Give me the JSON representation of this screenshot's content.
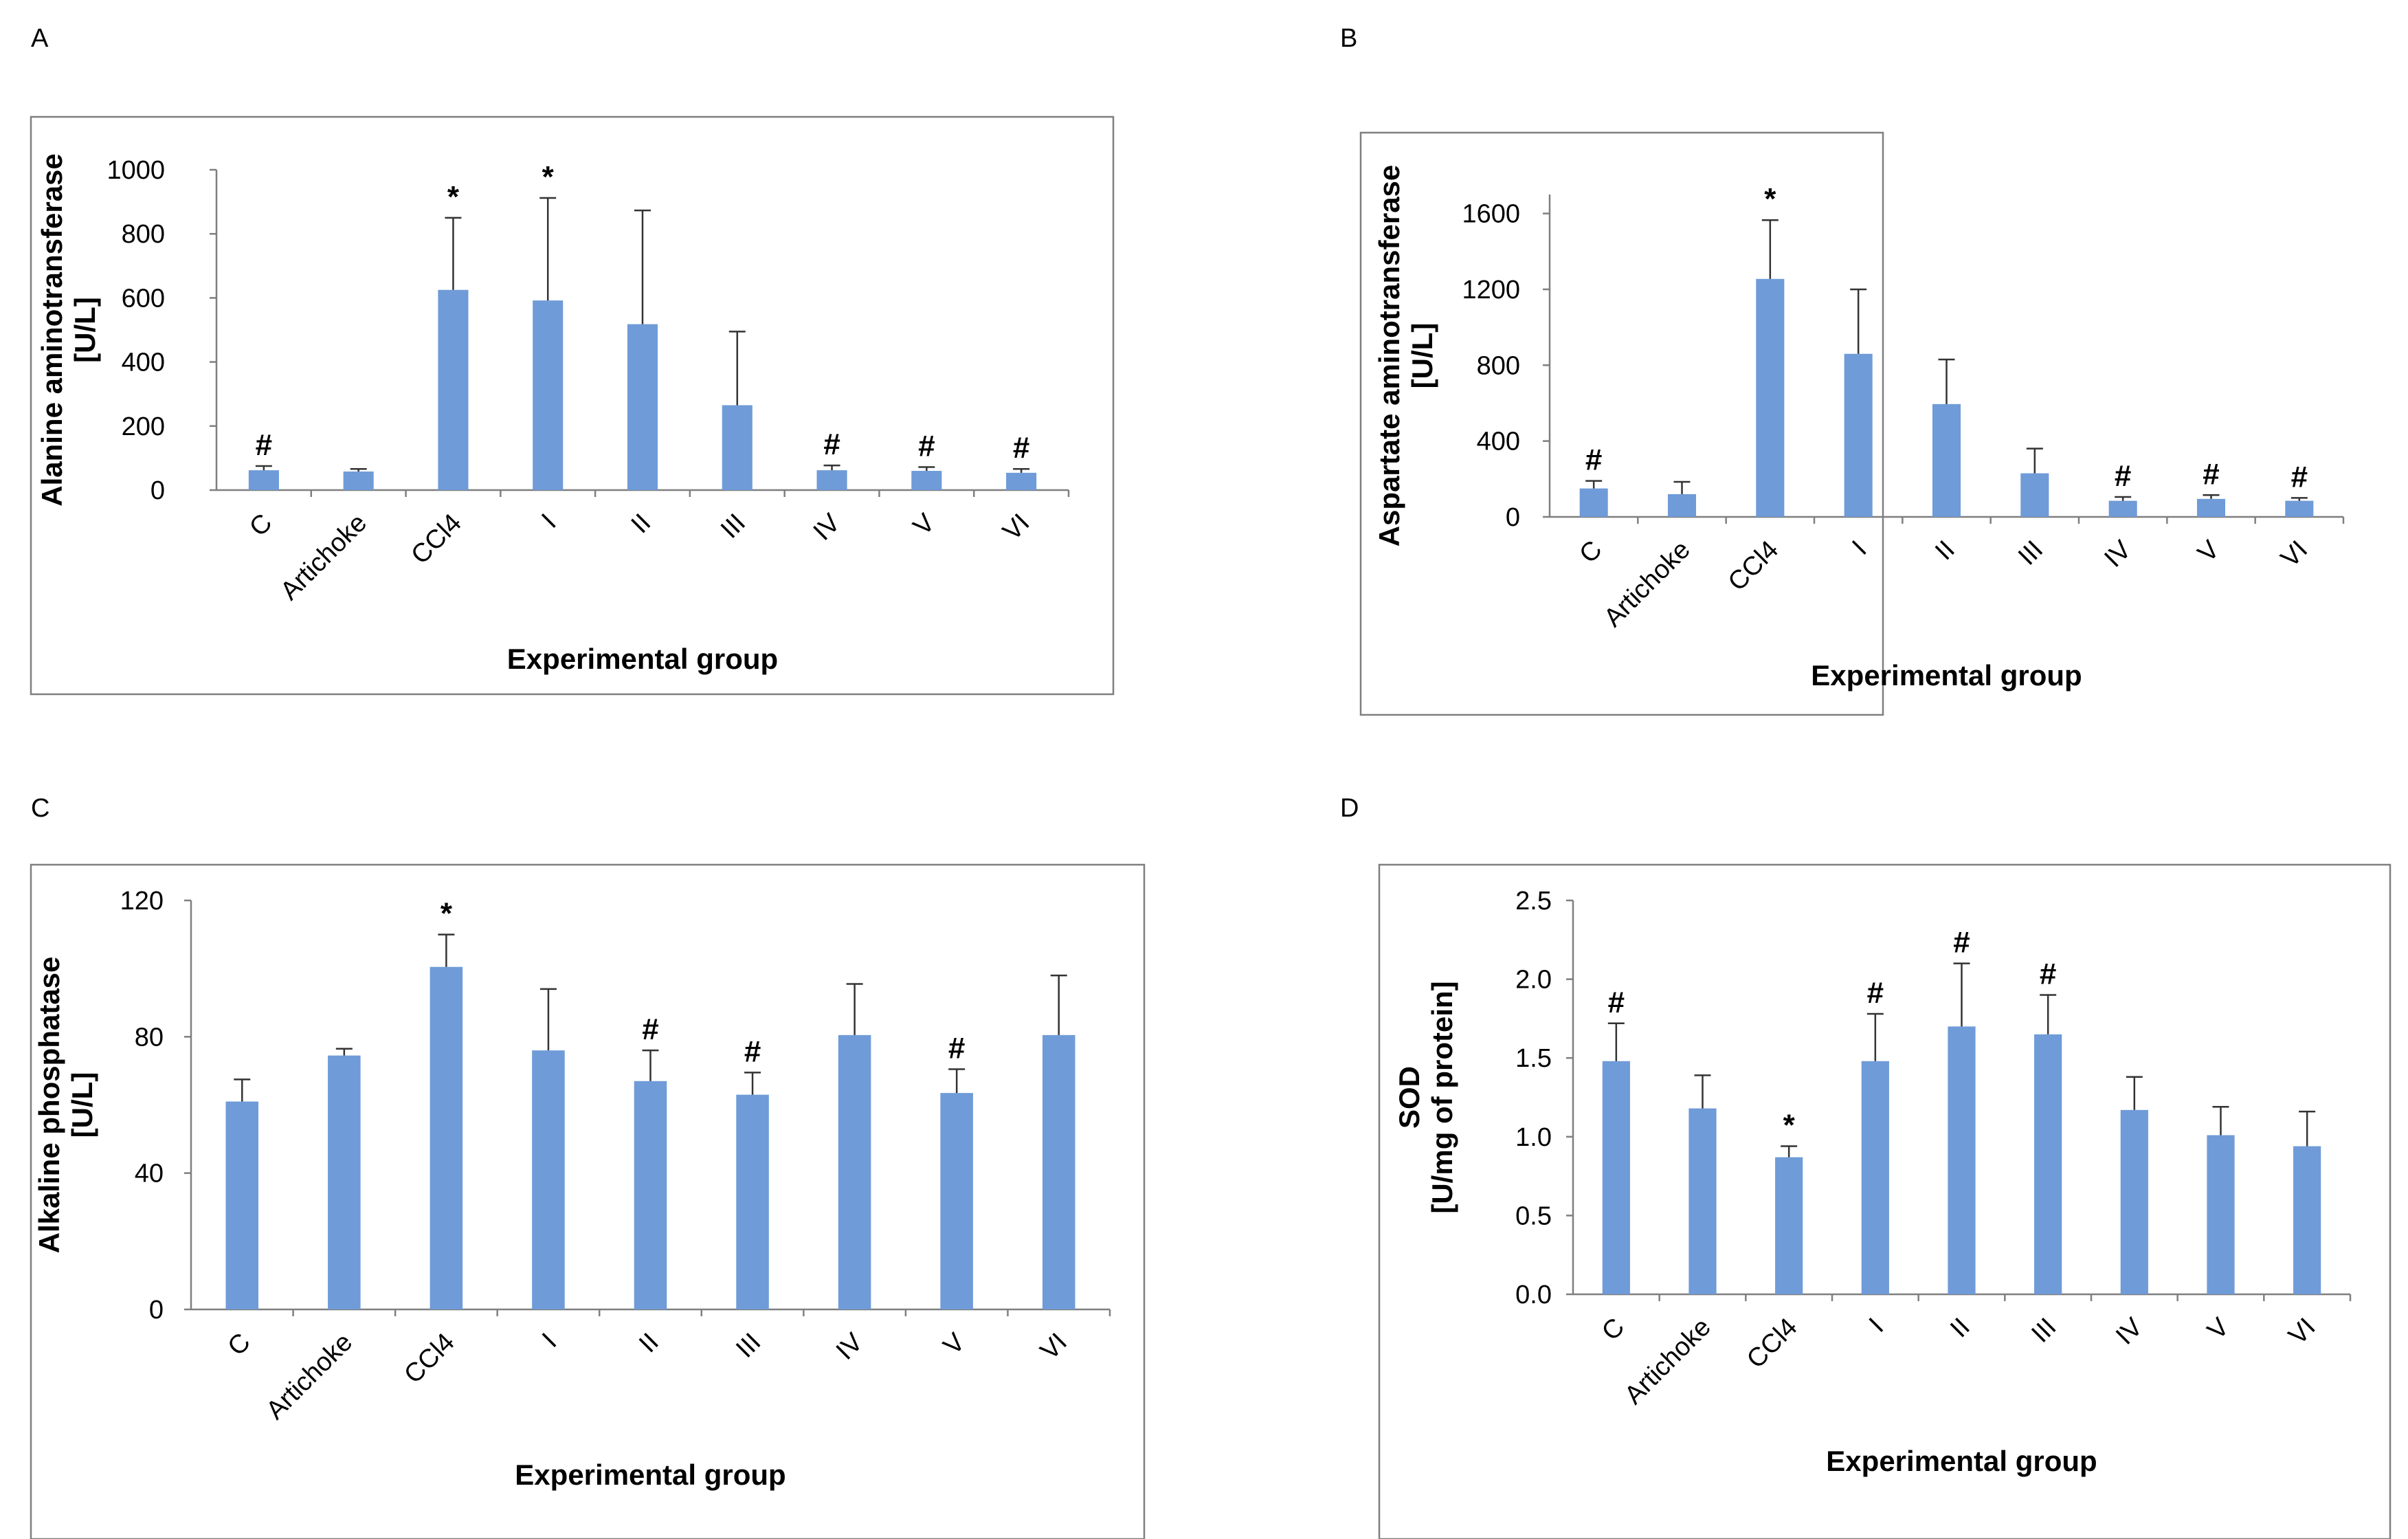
{
  "chart_data": [
    {
      "panel": "A",
      "type": "bar",
      "categories": [
        "C",
        "Artichoke",
        "CCl4",
        "I",
        "II",
        "III",
        "IV",
        "V",
        "VI"
      ],
      "values": [
        62,
        58,
        625,
        592,
        518,
        265,
        62,
        60,
        54
      ],
      "errors": [
        13,
        8,
        225,
        320,
        355,
        230,
        15,
        12,
        12
      ],
      "markers": [
        "#",
        "",
        "*",
        "*",
        "",
        "",
        "#",
        "#",
        "#"
      ],
      "ylabel": [
        "Alanine aminotransferase",
        "[U/L]"
      ],
      "xlabel": "Experimental group",
      "ylim": [
        0,
        1000
      ],
      "yticks": [
        "0",
        "200",
        "400",
        "600",
        "800",
        "1000"
      ]
    },
    {
      "panel": "B",
      "type": "bar",
      "categories": [
        "C",
        "Artichoke",
        "CCl4",
        "I",
        "II",
        "III",
        "IV",
        "V",
        "VI"
      ],
      "values": [
        150,
        120,
        1255,
        860,
        595,
        230,
        85,
        95,
        85
      ],
      "errors": [
        40,
        65,
        310,
        340,
        235,
        130,
        20,
        20,
        15
      ],
      "markers": [
        "#",
        "",
        "*",
        "",
        "",
        "",
        "#",
        "#",
        "#"
      ],
      "ylabel": [
        "Aspartate aminotransferase",
        "[U/L]"
      ],
      "xlabel": "Experimental group",
      "ylim": [
        0,
        1700
      ],
      "yticks": [
        "0",
        "400",
        "800",
        "1200",
        "1600"
      ]
    },
    {
      "panel": "C",
      "type": "bar",
      "categories": [
        "C",
        "Artichoke",
        "CCl4",
        "I",
        "II",
        "III",
        "IV",
        "V",
        "VI"
      ],
      "values": [
        61,
        74.5,
        100.5,
        76,
        67,
        63,
        80.5,
        63.5,
        80.5
      ],
      "errors": [
        6.5,
        2,
        9.5,
        18,
        9,
        6.5,
        15,
        7,
        17.5
      ],
      "markers": [
        "",
        "",
        "*",
        "",
        "#",
        "#",
        "",
        "#",
        ""
      ],
      "ylabel": [
        "Alkaline phosphatase",
        "[U/L]"
      ],
      "xlabel": "Experimental group",
      "ylim": [
        0,
        120
      ],
      "yticks": [
        "0",
        "40",
        "80",
        "120"
      ]
    },
    {
      "panel": "D",
      "type": "bar",
      "categories": [
        "C",
        "Artichoke",
        "CCl4",
        "I",
        "II",
        "III",
        "IV",
        "V",
        "VI"
      ],
      "values": [
        1.48,
        1.18,
        0.87,
        1.48,
        1.7,
        1.65,
        1.17,
        1.01,
        0.94
      ],
      "errors": [
        0.24,
        0.21,
        0.07,
        0.3,
        0.4,
        0.25,
        0.21,
        0.18,
        0.22
      ],
      "markers": [
        "#",
        "",
        "*",
        "#",
        "#",
        "#",
        "",
        "",
        ""
      ],
      "ylabel": [
        "SOD",
        "[U/mg of protein]"
      ],
      "xlabel": "Experimental group",
      "ylim": [
        0,
        2.5
      ],
      "yticks": [
        "0.0",
        "0.5",
        "1.0",
        "1.5",
        "2.0",
        "2.5"
      ]
    }
  ]
}
